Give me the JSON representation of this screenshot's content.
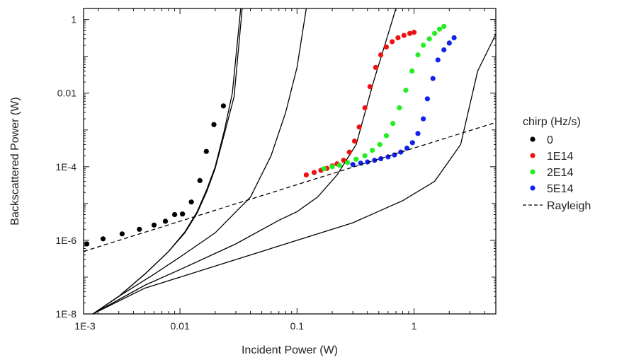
{
  "chart_data": {
    "type": "scatter",
    "xlabel": "Incident Power (W)",
    "ylabel": "Backscattered Power (W)",
    "x_scale": "log",
    "y_scale": "log",
    "xlim": [
      0.0015,
      5.0
    ],
    "ylim": [
      1e-08,
      2.0
    ],
    "x_ticks": [
      {
        "value": 0.001,
        "label": "1E-3"
      },
      {
        "value": 0.01,
        "label": "0.01"
      },
      {
        "value": 0.1,
        "label": "0.1"
      },
      {
        "value": 1,
        "label": "1"
      }
    ],
    "y_ticks": [
      {
        "value": 1e-08,
        "label": "1E-8"
      },
      {
        "value": 1e-06,
        "label": "1E-6"
      },
      {
        "value": 0.0001,
        "label": "1E-4"
      },
      {
        "value": 0.01,
        "label": "0.01"
      },
      {
        "value": 1,
        "label": "1"
      }
    ],
    "grid": false,
    "legend_title": "chirp  (Hz/s)",
    "legend_position": "right-outside",
    "series": [
      {
        "name": "0",
        "kind": "points",
        "color": "#000000",
        "x": [
          0.0016,
          0.0022,
          0.0032,
          0.0045,
          0.006,
          0.0075,
          0.009,
          0.0105,
          0.0125,
          0.0148,
          0.0168,
          0.0195,
          0.0235
        ],
        "y": [
          8e-07,
          1.1e-06,
          1.5e-06,
          2e-06,
          2.6e-06,
          3.3e-06,
          5e-06,
          5.2e-06,
          1.1e-05,
          4.2e-05,
          0.00026,
          0.0014,
          0.0045
        ]
      },
      {
        "name": "1E14",
        "kind": "points",
        "color": "#ee1111",
        "x": [
          0.12,
          0.14,
          0.16,
          0.18,
          0.2,
          0.22,
          0.25,
          0.28,
          0.31,
          0.34,
          0.38,
          0.42,
          0.47,
          0.52,
          0.58,
          0.65,
          0.73,
          0.82,
          0.92,
          1.0
        ],
        "y": [
          6e-05,
          7e-05,
          8e-05,
          9e-05,
          0.000105,
          0.00012,
          0.00015,
          0.00025,
          0.0005,
          0.0012,
          0.004,
          0.015,
          0.05,
          0.11,
          0.18,
          0.25,
          0.32,
          0.37,
          0.42,
          0.45
        ]
      },
      {
        "name": "2E14",
        "kind": "points",
        "color": "#22ee22",
        "x": [
          0.17,
          0.2,
          0.23,
          0.27,
          0.32,
          0.38,
          0.44,
          0.51,
          0.58,
          0.66,
          0.75,
          0.85,
          0.96,
          1.08,
          1.2,
          1.35,
          1.5,
          1.65,
          1.8
        ],
        "y": [
          8.8e-05,
          0.0001,
          0.00011,
          0.00013,
          0.00016,
          0.0002,
          0.00028,
          0.0004,
          0.0007,
          0.0015,
          0.004,
          0.012,
          0.04,
          0.11,
          0.2,
          0.3,
          0.42,
          0.55,
          0.65
        ]
      },
      {
        "name": "5E14",
        "kind": "points",
        "color": "#1122ee",
        "x": [
          0.3,
          0.35,
          0.4,
          0.46,
          0.52,
          0.6,
          0.68,
          0.77,
          0.87,
          0.97,
          1.08,
          1.2,
          1.3,
          1.45,
          1.6,
          1.8,
          2.0,
          2.2
        ],
        "y": [
          0.000115,
          0.000125,
          0.000135,
          0.00015,
          0.000165,
          0.000185,
          0.00021,
          0.00025,
          0.00032,
          0.00045,
          0.0008,
          0.002,
          0.007,
          0.025,
          0.08,
          0.15,
          0.23,
          0.32
        ]
      },
      {
        "name": "Rayleigh",
        "kind": "dashed-line",
        "color": "#000000",
        "x": [
          0.0015,
          5.0
        ],
        "y": [
          5e-07,
          0.0016
        ]
      }
    ],
    "model_curves": [
      {
        "x": [
          0.0018,
          0.003,
          0.005,
          0.008,
          0.011,
          0.014,
          0.017,
          0.02,
          0.024,
          0.028,
          0.033
        ],
        "y": [
          1e-08,
          3e-08,
          1.2e-07,
          5e-07,
          1.7e-06,
          6e-06,
          2.5e-05,
          0.0001,
          0.001,
          0.01,
          2
        ]
      },
      {
        "x": [
          0.0018,
          0.003,
          0.005,
          0.008,
          0.011,
          0.014,
          0.017,
          0.02,
          0.024,
          0.029,
          0.034
        ],
        "y": [
          1e-08,
          3e-08,
          1.2e-07,
          5e-07,
          1.6e-06,
          5.5e-06,
          2.2e-05,
          9e-05,
          0.0008,
          0.008,
          2
        ]
      },
      {
        "x": [
          0.0018,
          0.003,
          0.006,
          0.01,
          0.02,
          0.04,
          0.06,
          0.08,
          0.1,
          0.12
        ],
        "y": [
          1e-08,
          3e-08,
          1.2e-07,
          3.5e-07,
          1.6e-06,
          1.5e-05,
          0.0002,
          0.003,
          0.05,
          2
        ]
      },
      {
        "x": [
          0.0018,
          0.005,
          0.01,
          0.03,
          0.07,
          0.1,
          0.15,
          0.22,
          0.32,
          0.45,
          0.6,
          0.7
        ],
        "y": [
          1e-08,
          6e-08,
          1.6e-07,
          8e-07,
          3.5e-06,
          6e-06,
          1.5e-05,
          6e-05,
          0.0004,
          0.02,
          0.4,
          2
        ]
      },
      {
        "x": [
          0.0018,
          0.005,
          0.01,
          0.03,
          0.1,
          0.3,
          0.8,
          1.5,
          2.5,
          3.5,
          5.0
        ],
        "y": [
          1e-08,
          5e-08,
          1e-07,
          3e-07,
          1e-06,
          3e-06,
          1.2e-05,
          4e-05,
          0.0004,
          0.04,
          0.4
        ]
      }
    ]
  }
}
